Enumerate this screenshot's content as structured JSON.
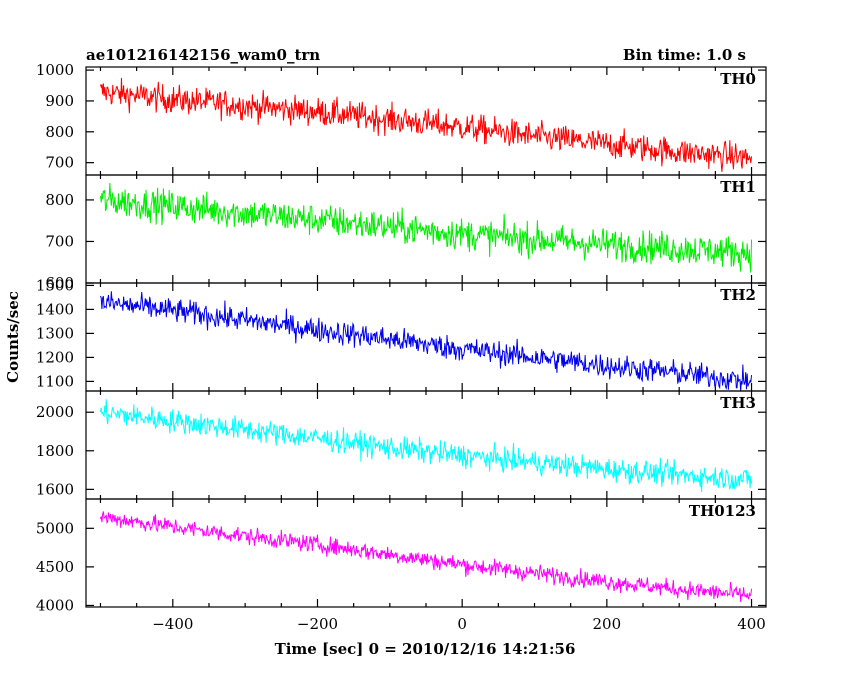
{
  "header": {
    "left": "ae101216142156_wam0_trn",
    "right": "Bin time: 1.0 s"
  },
  "chart_data": {
    "type": "line",
    "xlabel": "Time [sec] 0 = 2010/12/16 14:21:56",
    "ylabel": "Counts/sec",
    "xlim": [
      -520,
      420
    ],
    "xticks": [
      -400,
      -200,
      0,
      200,
      400
    ],
    "grid": false,
    "series": [
      {
        "name": "TH0",
        "color": "#ff0000",
        "ylim": [
          660,
          1010
        ],
        "yticks": [
          700,
          800,
          900,
          1000
        ],
        "x": [
          -500,
          -400,
          -300,
          -200,
          -100,
          0,
          100,
          200,
          300,
          400
        ],
        "values": [
          930,
          905,
          885,
          865,
          840,
          815,
          785,
          760,
          735,
          715
        ],
        "noise": 45
      },
      {
        "name": "TH1",
        "color": "#00ee00",
        "ylim": [
          600,
          860
        ],
        "yticks": [
          600,
          700,
          800
        ],
        "x": [
          -500,
          -400,
          -300,
          -200,
          -100,
          0,
          100,
          200,
          300,
          400
        ],
        "values": [
          800,
          785,
          768,
          752,
          735,
          718,
          705,
          693,
          683,
          672
        ],
        "noise": 38
      },
      {
        "name": "TH2",
        "color": "#0000ee",
        "ylim": [
          1060,
          1510
        ],
        "yticks": [
          1100,
          1200,
          1300,
          1400,
          1500
        ],
        "x": [
          -500,
          -400,
          -300,
          -200,
          -100,
          0,
          100,
          200,
          300,
          400
        ],
        "values": [
          1430,
          1395,
          1355,
          1315,
          1275,
          1235,
          1200,
          1165,
          1135,
          1100
        ],
        "noise": 50
      },
      {
        "name": "TH3",
        "color": "#00ffff",
        "ylim": [
          1550,
          2110
        ],
        "yticks": [
          1600,
          1800,
          2000
        ],
        "x": [
          -500,
          -400,
          -300,
          -200,
          -100,
          0,
          100,
          200,
          300,
          400
        ],
        "values": [
          2000,
          1955,
          1910,
          1865,
          1815,
          1775,
          1740,
          1705,
          1675,
          1650
        ],
        "noise": 60
      },
      {
        "name": "TH0123",
        "color": "#ff00ff",
        "ylim": [
          3980,
          5380
        ],
        "yticks": [
          4000,
          4500,
          5000
        ],
        "x": [
          -500,
          -400,
          -300,
          -200,
          -100,
          0,
          100,
          200,
          300,
          400
        ],
        "values": [
          5150,
          5020,
          4900,
          4790,
          4660,
          4530,
          4420,
          4310,
          4210,
          4130
        ],
        "noise": 110
      }
    ]
  }
}
